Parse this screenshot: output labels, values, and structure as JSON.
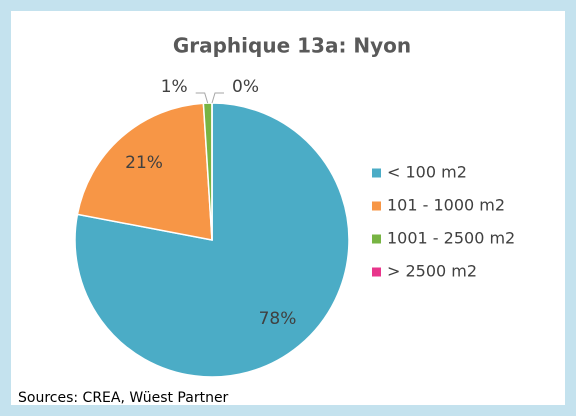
{
  "chart_data": {
    "type": "pie",
    "title": "Graphique 13a: Nyon",
    "categories": [
      "< 100 m2",
      "101 - 1000 m2",
      "1001 - 2500 m2",
      "> 2500 m2"
    ],
    "values": [
      78,
      21,
      1,
      0
    ],
    "value_labels": [
      "78%",
      "21%",
      "1%",
      "0%"
    ],
    "colors": [
      "#4bacc6",
      "#f79646",
      "#77b443",
      "#e8358b"
    ],
    "legend": "right",
    "source": "Sources: CREA, Wüest Partner"
  }
}
